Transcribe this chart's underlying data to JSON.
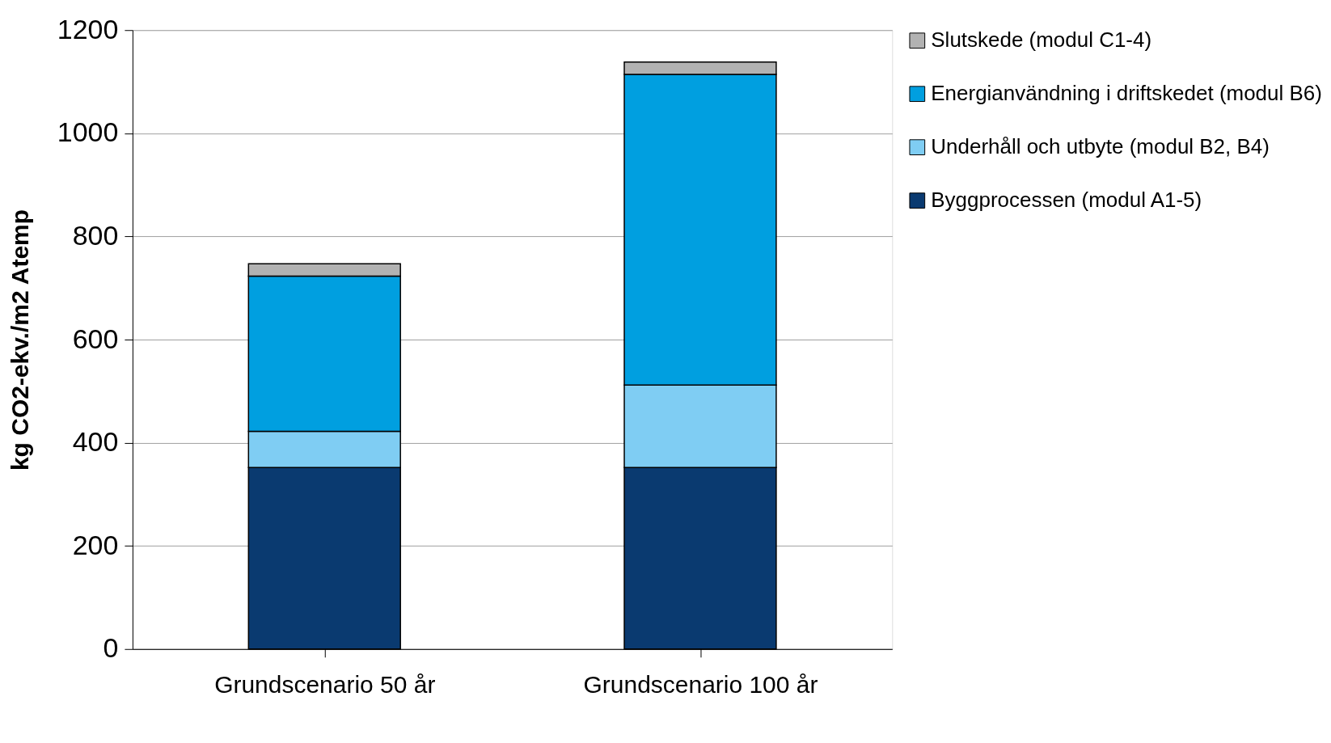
{
  "chart_data": {
    "type": "bar",
    "stacked": true,
    "ylabel": "kg CO2-ekv./m2 Atemp",
    "categories": [
      "Grundscenario 50 år",
      "Grundscenario 100 år"
    ],
    "series": [
      {
        "name": "Byggprocessen (modul A1-5)",
        "color": "#0a3a70",
        "values": [
          352,
          352
        ]
      },
      {
        "name": "Underhåll och utbyte (modul B2, B4)",
        "color": "#7fcdf3",
        "values": [
          70,
          160
        ]
      },
      {
        "name": "Energianvändning i driftskedet (modul B6)",
        "color": "#009fe0",
        "values": [
          301,
          602
        ]
      },
      {
        "name": "Slutskede (modul C1-4)",
        "color": "#b2b2b2",
        "values": [
          24,
          24
        ]
      }
    ],
    "ylim": [
      0,
      1200
    ],
    "yticks": [
      0,
      200,
      400,
      600,
      800,
      1000,
      1200
    ],
    "grid": "y",
    "legend": "right"
  }
}
